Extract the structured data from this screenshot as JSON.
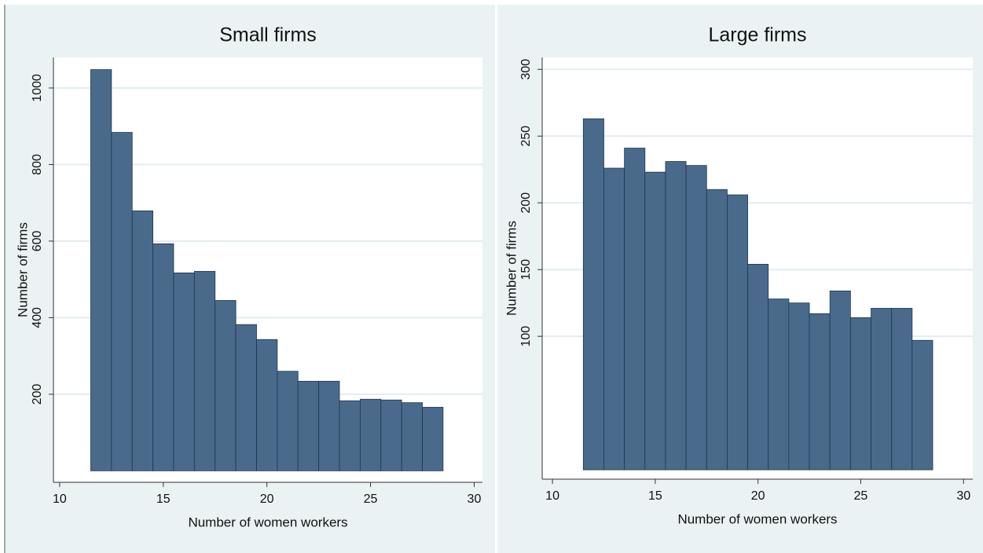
{
  "chart_data": [
    {
      "type": "histogram",
      "title": "Small firms",
      "x_label": "Number of women workers",
      "y_label": "Number of firms",
      "bins": [
        11.5,
        12.5,
        13.5,
        14.5,
        15.5,
        16.5,
        17.5,
        18.5,
        19.5,
        20.5,
        21.5,
        22.5,
        23.5,
        24.5,
        25.5,
        26.5,
        27.5,
        28.5
      ],
      "values": [
        1048,
        884,
        679,
        593,
        517,
        521,
        445,
        382,
        343,
        260,
        234,
        234,
        183,
        187,
        185,
        178,
        166
      ],
      "color": "#4a6a8c",
      "xlim": [
        9.7,
        30.4
      ],
      "ylim": [
        -30,
        1080
      ],
      "xticks": [
        10,
        15,
        20,
        25,
        30
      ],
      "yticks": [
        200,
        400,
        600,
        800,
        1000
      ],
      "grid": true
    },
    {
      "type": "histogram",
      "title": "Large firms",
      "x_label": "Number of women workers",
      "y_label": "Number of firms",
      "bins": [
        11.5,
        12.5,
        13.5,
        14.5,
        15.5,
        16.5,
        17.5,
        18.5,
        19.5,
        20.5,
        21.5,
        22.5,
        23.5,
        24.5,
        25.5,
        26.5,
        27.5,
        28.5
      ],
      "values": [
        263,
        226,
        241,
        223,
        231,
        228,
        210,
        206,
        154,
        128,
        125,
        117,
        134,
        114,
        121,
        121,
        97
      ],
      "color": "#4a6a8c",
      "xlim": [
        9.5,
        30.45
      ],
      "ylim": [
        -7,
        309
      ],
      "xticks": [
        10,
        15,
        20,
        25,
        30
      ],
      "yticks": [
        100,
        150,
        200,
        250,
        300
      ],
      "grid": true
    }
  ]
}
